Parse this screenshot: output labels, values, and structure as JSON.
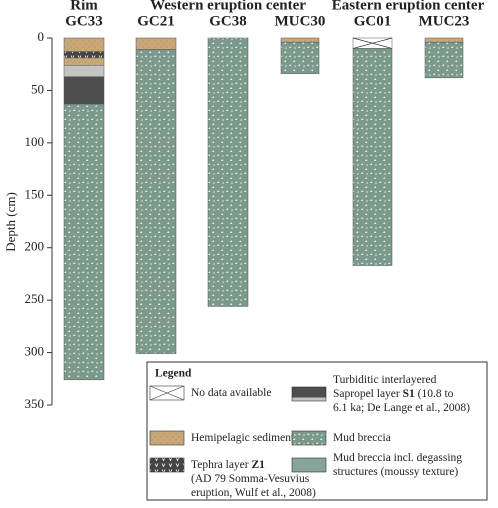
{
  "chart_data": {
    "type": "core-log",
    "y_label": "Depth (cm)",
    "ylim": [
      0,
      350
    ],
    "yticks": [
      0,
      50,
      100,
      150,
      200,
      250,
      300,
      350
    ],
    "groups": [
      "Rim",
      "Western eruption center",
      "Eastern eruption center"
    ],
    "columns": [
      {
        "name": "GC33",
        "layers": [
          {
            "kind": "hemipelagic",
            "top": 0,
            "bottom": 13
          },
          {
            "kind": "tephra",
            "top": 13,
            "bottom": 19
          },
          {
            "kind": "hemipelagic",
            "top": 19,
            "bottom": 26
          },
          {
            "kind": "turbidite-light",
            "top": 26,
            "bottom": 37
          },
          {
            "kind": "turbidite",
            "top": 37,
            "bottom": 63
          },
          {
            "kind": "mud-breccia",
            "top": 63,
            "bottom": 326
          }
        ]
      },
      {
        "name": "GC21",
        "layers": [
          {
            "kind": "hemipelagic",
            "top": 0,
            "bottom": 11
          },
          {
            "kind": "mud-breccia",
            "top": 11,
            "bottom": 301
          }
        ]
      },
      {
        "name": "GC38",
        "layers": [
          {
            "kind": "mud-breccia",
            "top": 0,
            "bottom": 256
          }
        ]
      },
      {
        "name": "MUC30",
        "layers": [
          {
            "kind": "hemipelagic",
            "top": 0,
            "bottom": 4
          },
          {
            "kind": "mud-breccia",
            "top": 4,
            "bottom": 34
          }
        ]
      },
      {
        "name": "GC01",
        "layers": [
          {
            "kind": "no-data",
            "top": 0,
            "bottom": 10
          },
          {
            "kind": "mud-breccia",
            "top": 10,
            "bottom": 217
          }
        ]
      },
      {
        "name": "MUC23",
        "layers": [
          {
            "kind": "hemipelagic",
            "top": 0,
            "bottom": 4
          },
          {
            "kind": "mud-breccia",
            "top": 4,
            "bottom": 38
          }
        ]
      }
    ],
    "legend": {
      "title": "Legend",
      "items": [
        {
          "kind": "no-data",
          "lines": [
            [
              {
                "text": "No data available"
              }
            ]
          ]
        },
        {
          "kind": "turbidite",
          "lines": [
            [
              {
                "text": "Turbiditic interlayered"
              }
            ],
            [
              {
                "text": "Sapropel layer "
              },
              {
                "text": "S1",
                "bold": true
              },
              {
                "text": " (10.8 to"
              }
            ],
            [
              {
                "text": "6.1 ka; De Lange et al., 2008)"
              }
            ]
          ]
        },
        {
          "kind": "hemipelagic",
          "lines": [
            [
              {
                "text": "Hemipelagic sediment"
              }
            ]
          ]
        },
        {
          "kind": "mud-breccia",
          "lines": [
            [
              {
                "text": "Mud breccia"
              }
            ]
          ]
        },
        {
          "kind": "tephra",
          "lines": [
            [
              {
                "text": "Tephra layer "
              },
              {
                "text": "Z1",
                "bold": true
              }
            ],
            [
              {
                "text": "(AD 79 Somma-Vesuvius"
              }
            ],
            [
              {
                "text": "eruption, Wulf et al., 2008)"
              }
            ]
          ]
        },
        {
          "kind": "moussy",
          "lines": [
            [
              {
                "text": "Mud breccia incl. degassing"
              }
            ],
            [
              {
                "text": "structures (moussy texture)"
              }
            ]
          ]
        }
      ]
    }
  }
}
